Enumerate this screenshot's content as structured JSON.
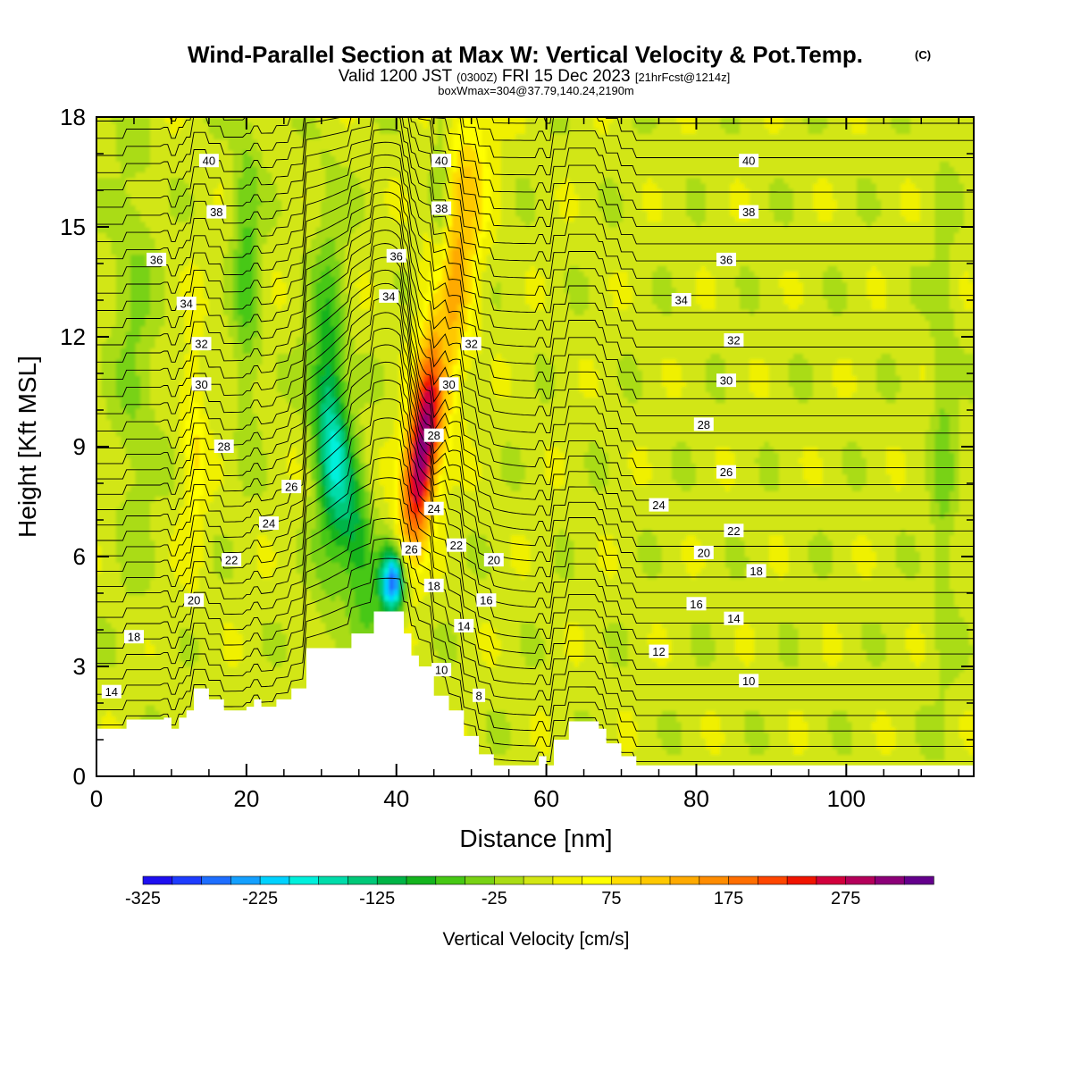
{
  "title": {
    "main": "Wind-Parallel Section at Max W: Vertical Velocity & Pot.Temp.",
    "copyright": "(C)",
    "valid_prefix": "Valid 1200 JST",
    "valid_utc": "(0300Z)",
    "valid_date": "FRI 15 Dec 2023",
    "forecast": "[21hrFcst@1214z]",
    "box": "boxWmax=304@37.79,140.24,2190m"
  },
  "colorbar": {
    "label": "Vertical Velocity [cm/s]",
    "tick_labels": [
      "-325",
      "-225",
      "-125",
      "-25",
      "75",
      "175",
      "275"
    ],
    "colors": [
      "#1e0ff0",
      "#1e3cff",
      "#1e6eff",
      "#14a0ff",
      "#00d2ff",
      "#00f0dc",
      "#00dcaa",
      "#00c878",
      "#00b446",
      "#14b41e",
      "#46c814",
      "#78d214",
      "#aadc14",
      "#d2e614",
      "#f0f000",
      "#ffff00",
      "#ffdc00",
      "#ffc800",
      "#ffaa00",
      "#ff8c00",
      "#ff6e00",
      "#ff4600",
      "#f01400",
      "#d2003c",
      "#b4005a",
      "#8c0078",
      "#64008c"
    ]
  },
  "chart_data": {
    "type": "heatmap",
    "xlabel": "Distance [nm]",
    "ylabel": "Height [Kft MSL]",
    "xlim": [
      0,
      117
    ],
    "ylim": [
      0,
      18
    ],
    "xticks": [
      0,
      20,
      40,
      60,
      80,
      100
    ],
    "yticks": [
      0,
      3,
      6,
      9,
      12,
      15,
      18
    ],
    "colorbar_range": [
      -325,
      325
    ],
    "colorbar_step": 25,
    "terrain": [
      [
        0,
        1.3
      ],
      [
        4,
        1.3
      ],
      [
        4,
        1.55
      ],
      [
        9,
        1.55
      ],
      [
        9,
        1.6
      ],
      [
        10,
        1.6
      ],
      [
        10,
        1.3
      ],
      [
        11,
        1.3
      ],
      [
        11,
        1.6
      ],
      [
        12,
        1.6
      ],
      [
        12,
        1.8
      ],
      [
        13,
        1.8
      ],
      [
        13,
        2.4
      ],
      [
        15,
        2.4
      ],
      [
        15,
        2.1
      ],
      [
        17,
        2.1
      ],
      [
        17,
        1.8
      ],
      [
        20,
        1.8
      ],
      [
        20,
        1.9
      ],
      [
        21,
        1.9
      ],
      [
        21,
        2.1
      ],
      [
        22,
        2.1
      ],
      [
        22,
        1.9
      ],
      [
        24,
        1.9
      ],
      [
        24,
        2.1
      ],
      [
        26,
        2.1
      ],
      [
        26,
        2.4
      ],
      [
        28,
        2.4
      ],
      [
        28,
        3.5
      ],
      [
        34,
        3.5
      ],
      [
        34,
        3.9
      ],
      [
        37,
        3.9
      ],
      [
        37,
        4.5
      ],
      [
        41,
        4.5
      ],
      [
        41,
        3.9
      ],
      [
        42,
        3.9
      ],
      [
        42,
        3.3
      ],
      [
        43,
        3.3
      ],
      [
        43,
        3.0
      ],
      [
        45,
        3.0
      ],
      [
        45,
        2.2
      ],
      [
        47,
        2.2
      ],
      [
        47,
        1.8
      ],
      [
        49,
        1.8
      ],
      [
        49,
        1.1
      ],
      [
        51,
        1.1
      ],
      [
        51,
        0.6
      ],
      [
        53,
        0.6
      ],
      [
        53,
        0.3
      ],
      [
        59,
        0.3
      ],
      [
        59,
        0.55
      ],
      [
        60,
        0.55
      ],
      [
        60,
        0.3
      ],
      [
        61,
        0.3
      ],
      [
        61,
        1.0
      ],
      [
        63,
        1.0
      ],
      [
        63,
        1.5
      ],
      [
        67,
        1.5
      ],
      [
        67,
        1.3
      ],
      [
        68,
        1.3
      ],
      [
        68,
        0.9
      ],
      [
        70,
        0.9
      ],
      [
        70,
        0.55
      ],
      [
        72,
        0.55
      ],
      [
        72,
        0.3
      ],
      [
        117,
        0.3
      ]
    ],
    "potential_temperature_labels": [
      {
        "value": 40,
        "x": 15,
        "y": 16.8
      },
      {
        "value": 40,
        "x": 46,
        "y": 16.8
      },
      {
        "value": 40,
        "x": 87,
        "y": 16.8
      },
      {
        "value": 38,
        "x": 16,
        "y": 15.4
      },
      {
        "value": 38,
        "x": 46,
        "y": 15.5
      },
      {
        "value": 38,
        "x": 87,
        "y": 15.4
      },
      {
        "value": 36,
        "x": 8,
        "y": 14.1
      },
      {
        "value": 36,
        "x": 40,
        "y": 14.2
      },
      {
        "value": 36,
        "x": 84,
        "y": 14.1
      },
      {
        "value": 34,
        "x": 12,
        "y": 12.9
      },
      {
        "value": 34,
        "x": 39,
        "y": 13.1
      },
      {
        "value": 34,
        "x": 78,
        "y": 13.0
      },
      {
        "value": 32,
        "x": 14,
        "y": 11.8
      },
      {
        "value": 32,
        "x": 50,
        "y": 11.8
      },
      {
        "value": 32,
        "x": 85,
        "y": 11.9
      },
      {
        "value": 30,
        "x": 14,
        "y": 10.7
      },
      {
        "value": 30,
        "x": 47,
        "y": 10.7
      },
      {
        "value": 30,
        "x": 84,
        "y": 10.8
      },
      {
        "value": 28,
        "x": 17,
        "y": 9.0
      },
      {
        "value": 28,
        "x": 45,
        "y": 9.3
      },
      {
        "value": 28,
        "x": 81,
        "y": 9.6
      },
      {
        "value": 26,
        "x": 26,
        "y": 7.9
      },
      {
        "value": 26,
        "x": 42,
        "y": 6.2
      },
      {
        "value": 26,
        "x": 84,
        "y": 8.3
      },
      {
        "value": 24,
        "x": 23,
        "y": 6.9
      },
      {
        "value": 24,
        "x": 45,
        "y": 7.3
      },
      {
        "value": 24,
        "x": 75,
        "y": 7.4
      },
      {
        "value": 22,
        "x": 18,
        "y": 5.9
      },
      {
        "value": 22,
        "x": 48,
        "y": 6.3
      },
      {
        "value": 22,
        "x": 85,
        "y": 6.7
      },
      {
        "value": 20,
        "x": 13,
        "y": 4.8
      },
      {
        "value": 20,
        "x": 53,
        "y": 5.9
      },
      {
        "value": 20,
        "x": 81,
        "y": 6.1
      },
      {
        "value": 18,
        "x": 5,
        "y": 3.8
      },
      {
        "value": 18,
        "x": 45,
        "y": 5.2
      },
      {
        "value": 18,
        "x": 88,
        "y": 5.6
      },
      {
        "value": 16,
        "x": 52,
        "y": 4.8
      },
      {
        "value": 16,
        "x": 80,
        "y": 4.7
      },
      {
        "value": 14,
        "x": 2,
        "y": 2.3
      },
      {
        "value": 14,
        "x": 49,
        "y": 4.1
      },
      {
        "value": 14,
        "x": 85,
        "y": 4.3
      },
      {
        "value": 12,
        "x": 75,
        "y": 3.4
      },
      {
        "value": 10,
        "x": 46,
        "y": 2.9
      },
      {
        "value": 10,
        "x": 87,
        "y": 2.6
      },
      {
        "value": 8,
        "x": 51,
        "y": 2.2
      }
    ]
  }
}
